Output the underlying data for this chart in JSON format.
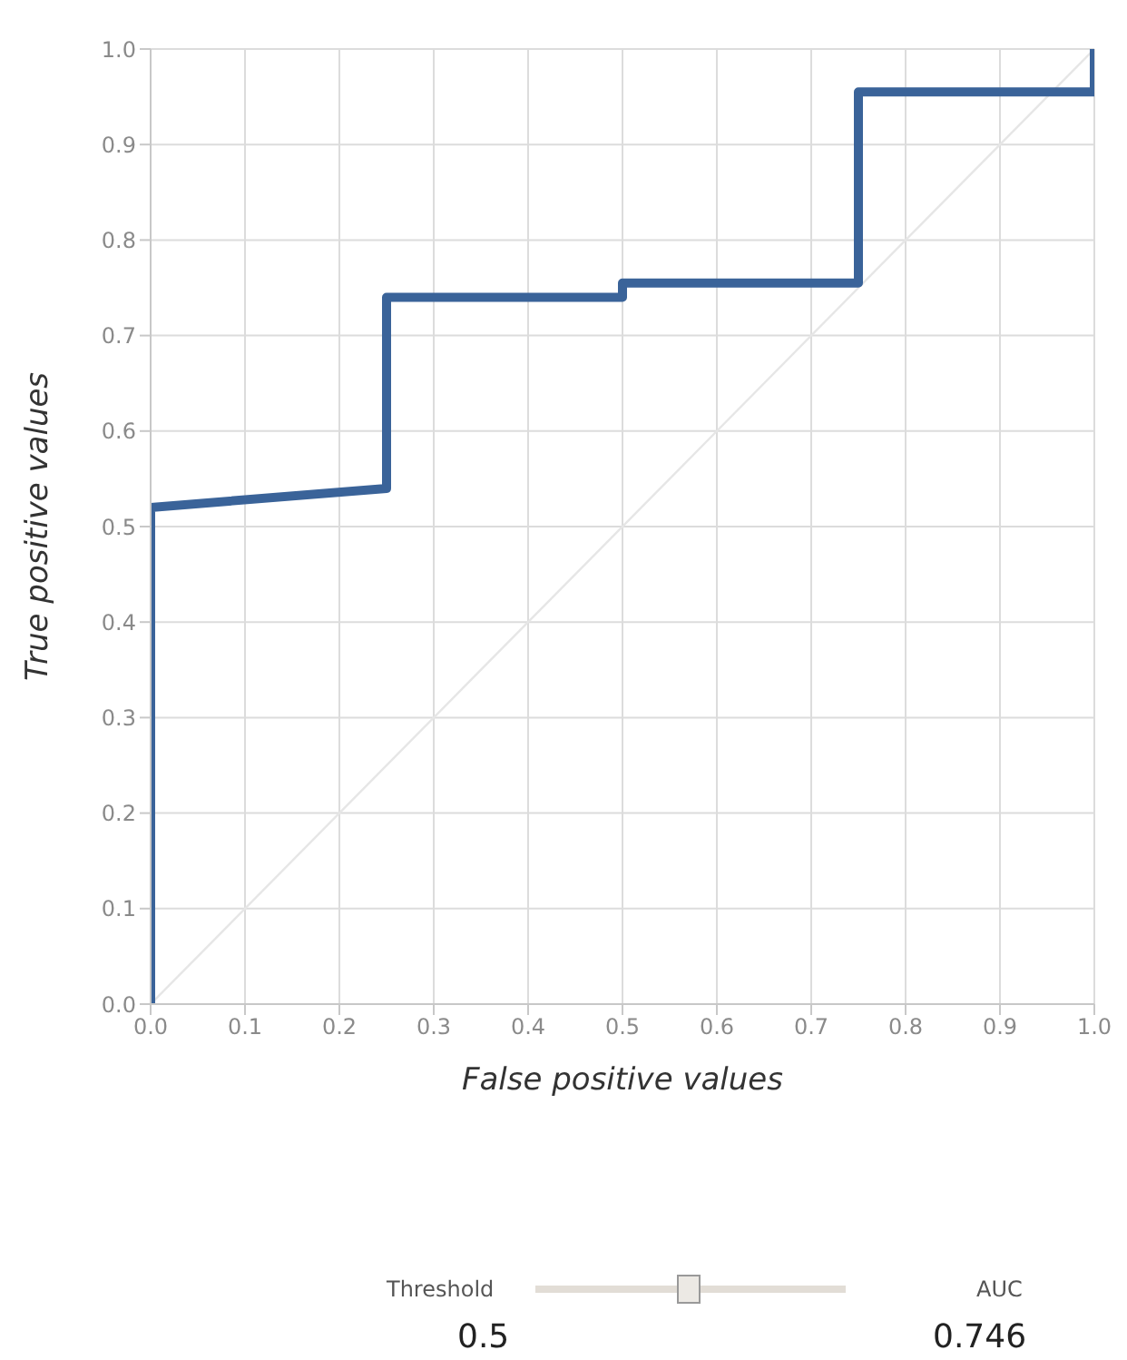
{
  "chart_data": {
    "type": "line",
    "xlabel": "False positive values",
    "ylabel": "True positive values",
    "series": [
      {
        "color": "#e6e6e6",
        "x": [
          0,
          1
        ],
        "values": [
          0,
          1
        ]
      },
      {
        "color": "#3a6399",
        "x": [
          0,
          0,
          0.25,
          0.25,
          0.5,
          0.5,
          0.75,
          0.75,
          1,
          1
        ],
        "values": [
          0,
          0.52,
          0.54,
          0.74,
          0.74,
          0.755,
          0.755,
          0.955,
          0.955,
          1
        ]
      }
    ],
    "xlim": [
      0,
      1
    ],
    "xticks": [
      {
        "value": 0,
        "label": "0.0"
      },
      0.1,
      0.2,
      0.3,
      0.4,
      0.5,
      0.6,
      0.7,
      0.8,
      0.9,
      {
        "value": 1,
        "label": "1.0"
      }
    ],
    "ylim": [
      0,
      1
    ],
    "yticks": [
      {
        "value": 0,
        "label": "0.0"
      },
      0.1,
      0.2,
      0.3,
      0.4,
      0.5,
      0.6,
      0.7,
      0.8,
      0.9,
      {
        "value": 1,
        "label": "1.0"
      }
    ],
    "grid": true,
    "marker": "none",
    "annotations": [
      "Threshold",
      "0.5",
      "AUC",
      "0.746"
    ]
  }
}
